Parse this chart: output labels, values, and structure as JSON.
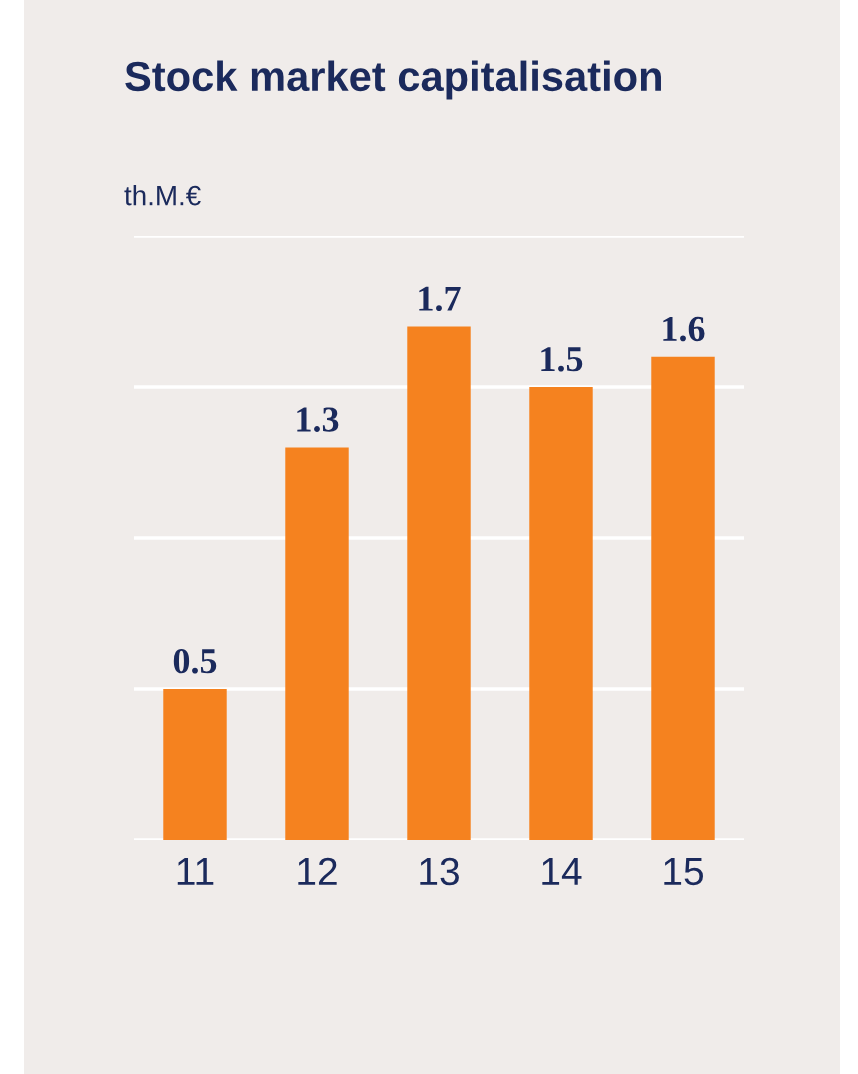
{
  "chart_data": {
    "type": "bar",
    "title": "Stock market capitalisation",
    "ylabel": "th.M.€",
    "categories": [
      "11",
      "12",
      "13",
      "14",
      "15"
    ],
    "values": [
      0.5,
      1.3,
      1.7,
      1.5,
      1.6
    ],
    "color": "#f5821f",
    "ylim": [
      0,
      2
    ],
    "yticks": [
      {
        "value": 0,
        "label": null
      },
      {
        "value": 0.5,
        "label": null
      },
      {
        "value": 1,
        "label": null
      },
      {
        "value": 1.5,
        "label": null
      },
      {
        "value": 2,
        "label": null
      }
    ],
    "grid": "y",
    "tick_labels": "x",
    "data_labels": true
  }
}
